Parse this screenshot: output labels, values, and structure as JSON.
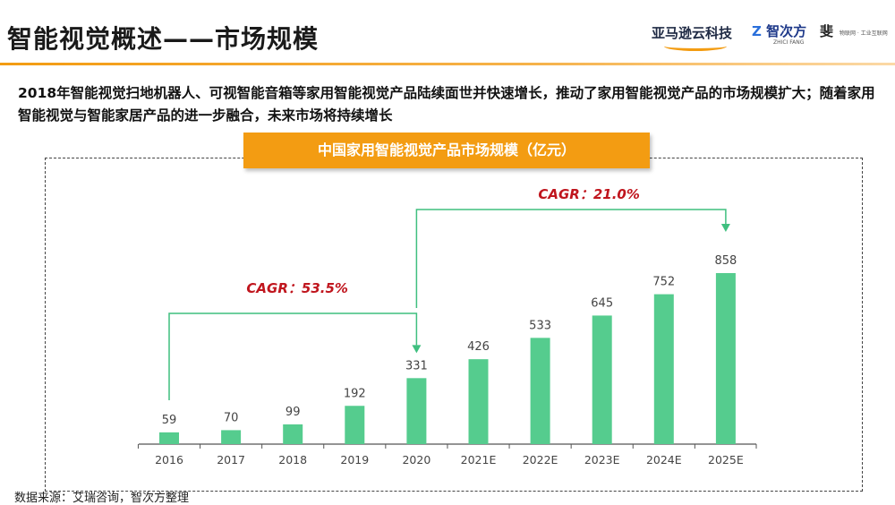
{
  "header": {
    "title": "智能视觉概述——市场规模",
    "logo_amazon": "亚马逊云科技",
    "logo_zhici": "智次方",
    "logo_zhici_sub": "ZHICI FANG",
    "logo_third": "斐",
    "logo_third_sub": "物联网 · 工业互联网"
  },
  "description": "2018年智能视觉扫地机器人、可视智能音箱等家用智能视觉产品陆续面世并快速增长，推动了家用智能视觉产品的市场规模扩大；随着家用智能视觉与智能家居产品的进一步融合，未来市场将持续增长",
  "chart_data": {
    "type": "bar",
    "title": "中国家用智能视觉产品市场规模（亿元）",
    "categories": [
      "2016",
      "2017",
      "2018",
      "2019",
      "2020",
      "2021E",
      "2022E",
      "2023E",
      "2024E",
      "2025E"
    ],
    "values": [
      59,
      70,
      99,
      192,
      331,
      426,
      533,
      645,
      752,
      858
    ],
    "ylim": [
      0,
      900
    ],
    "bar_color": "#55cc8e",
    "annotations": [
      {
        "label": "CAGR：53.5%",
        "from": "2016",
        "to": "2020"
      },
      {
        "label": "CAGR：21.0%",
        "from": "2020",
        "to": "2025E"
      }
    ],
    "annotation_color": "#c0161e",
    "arrow_color": "#3fbf7f"
  },
  "source": "数据来源：艾瑞咨询，智次方整理"
}
